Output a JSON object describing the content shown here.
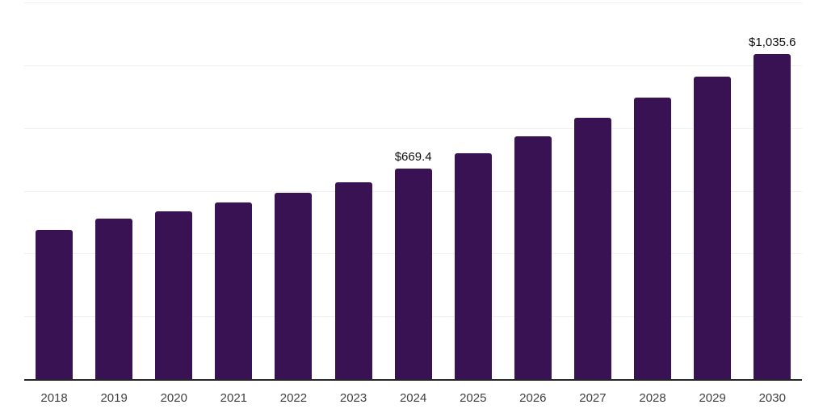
{
  "chart_data": {
    "type": "bar",
    "title": "",
    "xlabel": "",
    "ylabel": "",
    "categories": [
      "2018",
      "2019",
      "2020",
      "2021",
      "2022",
      "2023",
      "2024",
      "2025",
      "2026",
      "2027",
      "2028",
      "2029",
      "2030"
    ],
    "values": [
      475.0,
      511.0,
      534.0,
      562.0,
      593.0,
      628.0,
      669.4,
      719.9,
      774.2,
      832.7,
      895.6,
      963.1,
      1035.6
    ],
    "point_labels": [
      "",
      "",
      "",
      "",
      "",
      "",
      "$669.4",
      "",
      "",
      "",
      "",
      "",
      "$1,035.6"
    ],
    "ylim": [
      0,
      1200
    ],
    "gridline_step": 200,
    "grid": true,
    "legend": false,
    "colors": {
      "bar": "#381253",
      "gridline": "#f0f0f0",
      "axis_line": "#262626",
      "tick_label": "#404040",
      "value_label": "#0d0d0d",
      "background": "#ffffff"
    }
  }
}
